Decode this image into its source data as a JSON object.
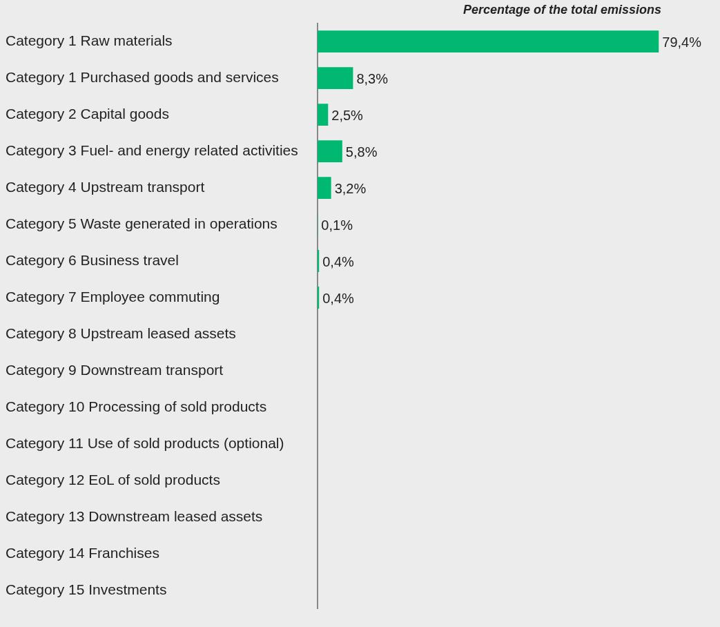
{
  "chart_data": {
    "type": "bar",
    "orientation": "horizontal",
    "title": "Percentage of the total emissions",
    "categories": [
      "Category 1 Raw materials",
      "Category 1 Purchased goods and services",
      "Category 2 Capital goods",
      "Category 3 Fuel- and energy related activities",
      "Category 4 Upstream transport",
      "Category 5 Waste generated in operations",
      "Category 6 Business travel",
      "Category 7 Employee commuting",
      "Category 8 Upstream leased assets",
      "Category 9 Downstream transport",
      "Category 10 Processing of sold products",
      "Category 11 Use of sold products (optional)",
      "Category 12 EoL of sold products",
      "Category 13 Downstream leased assets",
      "Category 14 Franchises",
      "Category 15 Investments"
    ],
    "values": [
      79.4,
      8.3,
      2.5,
      5.8,
      3.2,
      0.1,
      0.4,
      0.4,
      null,
      null,
      null,
      null,
      null,
      null,
      null,
      null
    ],
    "value_labels": [
      "79,4%",
      "8,3%",
      "2,5%",
      "5,8%",
      "3,2%",
      "0,1%",
      "0,4%",
      "0,4%",
      null,
      null,
      null,
      null,
      null,
      null,
      null,
      null
    ],
    "color": "#00b870",
    "legend": false,
    "tick_labels": "y"
  }
}
